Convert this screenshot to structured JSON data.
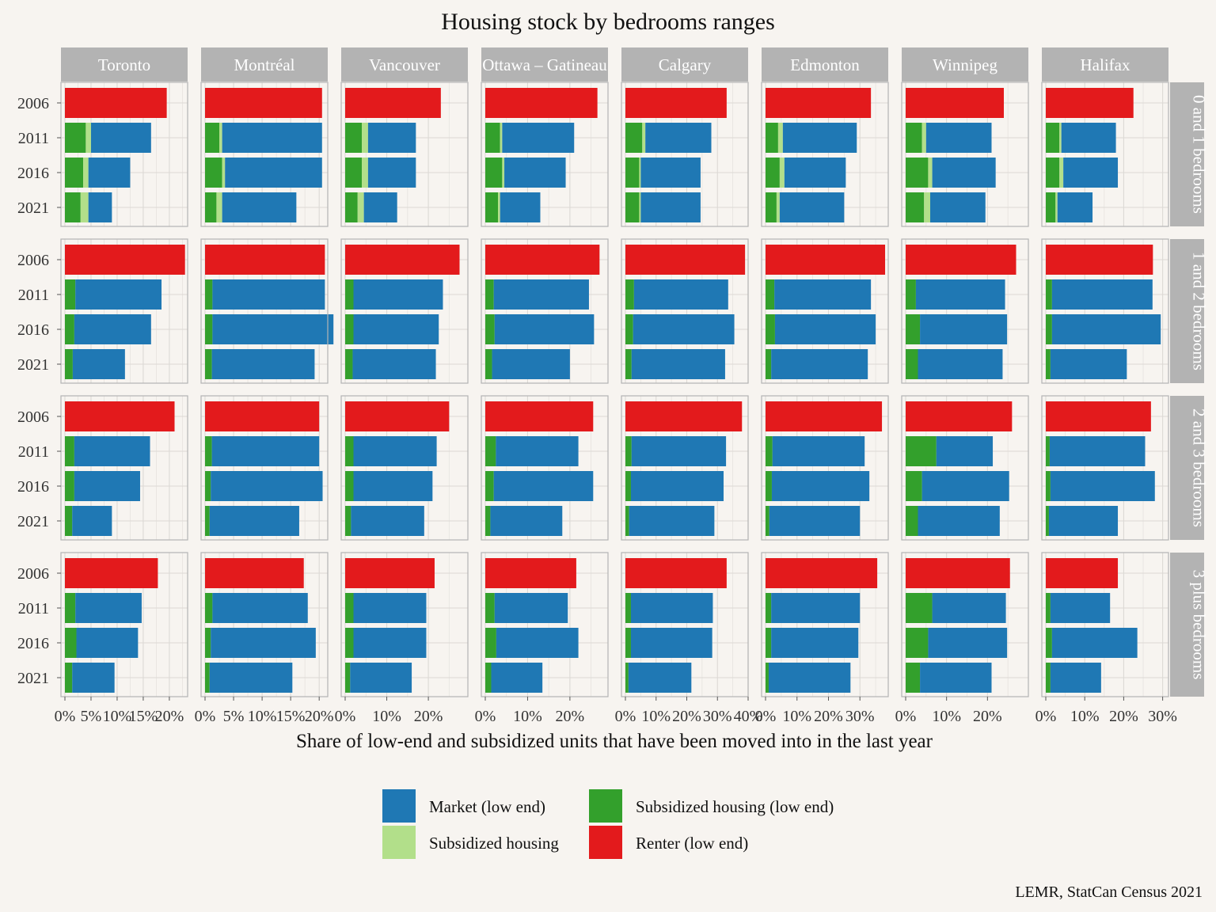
{
  "chart_data": {
    "type": "bar",
    "title": "Housing stock by bedrooms ranges",
    "xlabel": "Share of low-end and subsidized units that have been moved into in the last year",
    "caption": "LEMR, StatCan Census 2021",
    "years": [
      "2006",
      "2011",
      "2016",
      "2021"
    ],
    "cities": [
      "Toronto",
      "Montréal",
      "Vancouver",
      "Ottawa – Gatineau",
      "Calgary",
      "Edmonton",
      "Winnipeg",
      "Halifax"
    ],
    "bedroom_ranges": [
      "0 and 1 bedrooms",
      "1 and 2 bedrooms",
      "2 and 3 bedrooms",
      "3 plus bedrooms"
    ],
    "legend": [
      {
        "key": "market",
        "label": "Market (low end)",
        "color": "#1f78b4"
      },
      {
        "key": "subsidized_low",
        "label": "Subsidized housing (low end)",
        "color": "#33a02c"
      },
      {
        "key": "subsidized",
        "label": "Subsidized housing",
        "color": "#b2df8a"
      },
      {
        "key": "renter",
        "label": "Renter (low end)",
        "color": "#e31a1c"
      }
    ],
    "series_order": [
      "subsidized_low",
      "subsidized",
      "market"
    ],
    "axes": [
      {
        "city": "Toronto",
        "xlim": [
          0,
          23.5
        ],
        "ticks": [
          0,
          5,
          10,
          15,
          20
        ],
        "tick_labels": [
          "0%",
          "5%",
          "10%",
          "15%",
          "20%"
        ]
      },
      {
        "city": "Montréal",
        "xlim": [
          0,
          21.5
        ],
        "ticks": [
          0,
          5,
          10,
          15,
          20
        ],
        "tick_labels": [
          "0%",
          "5%",
          "10%",
          "15%",
          "20%"
        ]
      },
      {
        "city": "Vancouver",
        "xlim": [
          0,
          29.5
        ],
        "ticks": [
          0,
          10,
          20
        ],
        "tick_labels": [
          "0%",
          "10%",
          "20%"
        ]
      },
      {
        "city": "Ottawa – Gatineau",
        "xlim": [
          0,
          29
        ],
        "ticks": [
          0,
          10,
          20
        ],
        "tick_labels": [
          "0%",
          "10%",
          "20%"
        ]
      },
      {
        "city": "Calgary",
        "xlim": [
          0,
          40
        ],
        "ticks": [
          0,
          10,
          20,
          30,
          40
        ],
        "tick_labels": [
          "0%",
          "10%",
          "20%",
          "30%",
          "40%"
        ]
      },
      {
        "city": "Edmonton",
        "xlim": [
          0,
          39
        ],
        "ticks": [
          0,
          10,
          20,
          30
        ],
        "tick_labels": [
          "0%",
          "10%",
          "20%",
          "30%"
        ]
      },
      {
        "city": "Winnipeg",
        "xlim": [
          0,
          30
        ],
        "ticks": [
          0,
          10,
          20
        ],
        "tick_labels": [
          "0%",
          "10%",
          "20%"
        ]
      },
      {
        "city": "Halifax",
        "xlim": [
          0,
          31.5
        ],
        "ticks": [
          0,
          10,
          20,
          30
        ],
        "tick_labels": [
          "0%",
          "10%",
          "20%",
          "30%"
        ]
      }
    ],
    "panels": [
      [
        {
          "renter": 19.5,
          "rows": [
            [
              4.0,
              1.0,
              11.5
            ],
            [
              3.5,
              1.0,
              8.0
            ],
            [
              3.0,
              1.5,
              4.5
            ]
          ]
        },
        {
          "renter": 20.5,
          "rows": [
            [
              2.5,
              0.5,
              17.5
            ],
            [
              3.0,
              0.5,
              17.0
            ],
            [
              2.0,
              1.0,
              13.0
            ]
          ]
        },
        {
          "renter": 23.0,
          "rows": [
            [
              4.0,
              1.5,
              11.5
            ],
            [
              4.0,
              1.5,
              11.5
            ],
            [
              3.0,
              1.5,
              8.0
            ]
          ]
        },
        {
          "renter": 26.5,
          "rows": [
            [
              3.5,
              0.5,
              17.0
            ],
            [
              4.0,
              0.5,
              14.5
            ],
            [
              3.0,
              0.5,
              9.5
            ]
          ]
        },
        {
          "renter": 33.0,
          "rows": [
            [
              5.5,
              1.0,
              21.5
            ],
            [
              4.5,
              0.5,
              19.5
            ],
            [
              4.5,
              0.5,
              19.5
            ]
          ]
        },
        {
          "renter": 33.5,
          "rows": [
            [
              4.0,
              1.5,
              23.5
            ],
            [
              4.5,
              1.5,
              19.5
            ],
            [
              3.5,
              1.0,
              20.5
            ]
          ]
        },
        {
          "renter": 24.0,
          "rows": [
            [
              4.0,
              1.0,
              16.0
            ],
            [
              5.5,
              1.0,
              15.5
            ],
            [
              4.5,
              1.5,
              13.5
            ]
          ]
        },
        {
          "renter": 22.5,
          "rows": [
            [
              3.5,
              0.5,
              14.0
            ],
            [
              3.5,
              1.0,
              14.0
            ],
            [
              2.5,
              0.5,
              9.0
            ]
          ]
        }
      ],
      [
        {
          "renter": 23.0,
          "rows": [
            [
              2.0,
              0,
              16.5
            ],
            [
              1.8,
              0,
              14.7
            ],
            [
              1.5,
              0,
              10.0
            ]
          ]
        },
        {
          "renter": 21.0,
          "rows": [
            [
              1.3,
              0,
              19.7
            ],
            [
              1.3,
              0,
              21.2
            ],
            [
              1.2,
              0,
              18.0
            ]
          ]
        },
        {
          "renter": 27.5,
          "rows": [
            [
              2.0,
              0,
              21.5
            ],
            [
              2.0,
              0,
              20.5
            ],
            [
              1.8,
              0,
              20.0
            ]
          ]
        },
        {
          "renter": 27.0,
          "rows": [
            [
              2.0,
              0,
              22.5
            ],
            [
              2.2,
              0,
              23.5
            ],
            [
              1.6,
              0,
              18.4
            ]
          ]
        },
        {
          "renter": 39.0,
          "rows": [
            [
              2.8,
              0,
              30.7
            ],
            [
              2.5,
              0,
              33.0
            ],
            [
              2.0,
              0,
              30.5
            ]
          ]
        },
        {
          "renter": 38.0,
          "rows": [
            [
              2.8,
              0,
              30.7
            ],
            [
              3.0,
              0,
              32.0
            ],
            [
              1.8,
              0,
              30.7
            ]
          ]
        },
        {
          "renter": 27.0,
          "rows": [
            [
              2.5,
              0,
              21.8
            ],
            [
              3.5,
              0,
              21.3
            ],
            [
              3.0,
              0,
              20.7
            ]
          ]
        },
        {
          "renter": 27.5,
          "rows": [
            [
              1.6,
              0,
              25.8
            ],
            [
              1.6,
              0,
              27.9
            ],
            [
              1.2,
              0,
              19.6
            ]
          ]
        }
      ],
      [
        {
          "renter": 21.0,
          "rows": [
            [
              1.8,
              0,
              14.5
            ],
            [
              1.8,
              0,
              12.6
            ],
            [
              1.4,
              0,
              7.6
            ]
          ]
        },
        {
          "renter": 20.0,
          "rows": [
            [
              1.2,
              0,
              18.8
            ],
            [
              1.0,
              0,
              19.6
            ],
            [
              0.8,
              0,
              15.7
            ]
          ]
        },
        {
          "renter": 25.0,
          "rows": [
            [
              2.0,
              0,
              20.0
            ],
            [
              2.0,
              0,
              19.0
            ],
            [
              1.4,
              0,
              17.6
            ]
          ]
        },
        {
          "renter": 25.5,
          "rows": [
            [
              2.5,
              0,
              19.5
            ],
            [
              2.0,
              0,
              23.5
            ],
            [
              1.2,
              0,
              17.0
            ]
          ]
        },
        {
          "renter": 38.0,
          "rows": [
            [
              2.0,
              0,
              30.8
            ],
            [
              1.8,
              0,
              30.2
            ],
            [
              1.2,
              0,
              27.8
            ]
          ]
        },
        {
          "renter": 37.0,
          "rows": [
            [
              2.2,
              0,
              29.3
            ],
            [
              2.0,
              0,
              31.0
            ],
            [
              1.2,
              0,
              28.8
            ]
          ]
        },
        {
          "renter": 26.0,
          "rows": [
            [
              7.5,
              0,
              13.8
            ],
            [
              4.0,
              0,
              21.3
            ],
            [
              3.0,
              0,
              20.0
            ]
          ]
        },
        {
          "renter": 27.0,
          "rows": [
            [
              1.0,
              0,
              24.5
            ],
            [
              1.2,
              0,
              26.8
            ],
            [
              0.8,
              0,
              17.7
            ]
          ]
        }
      ],
      [
        {
          "renter": 17.8,
          "rows": [
            [
              2.0,
              0,
              12.7
            ],
            [
              2.2,
              0,
              11.8
            ],
            [
              1.4,
              0,
              8.1
            ]
          ]
        },
        {
          "renter": 17.3,
          "rows": [
            [
              1.3,
              0,
              16.7
            ],
            [
              1.0,
              0,
              18.4
            ],
            [
              0.8,
              0,
              14.5
            ]
          ]
        },
        {
          "renter": 21.5,
          "rows": [
            [
              2.0,
              0,
              17.5
            ],
            [
              2.0,
              0,
              17.5
            ],
            [
              1.2,
              0,
              14.8
            ]
          ]
        },
        {
          "renter": 21.5,
          "rows": [
            [
              2.2,
              0,
              17.3
            ],
            [
              2.6,
              0,
              19.4
            ],
            [
              1.4,
              0,
              12.1
            ]
          ]
        },
        {
          "renter": 33.0,
          "rows": [
            [
              1.8,
              0,
              26.7
            ],
            [
              1.8,
              0,
              26.5
            ],
            [
              1.0,
              0,
              20.5
            ]
          ]
        },
        {
          "renter": 35.5,
          "rows": [
            [
              1.8,
              0,
              28.2
            ],
            [
              1.8,
              0,
              27.7
            ],
            [
              1.0,
              0,
              26.0
            ]
          ]
        },
        {
          "renter": 25.5,
          "rows": [
            [
              6.5,
              0,
              18.0
            ],
            [
              5.5,
              0,
              19.3
            ],
            [
              3.5,
              0,
              17.5
            ]
          ]
        },
        {
          "renter": 18.5,
          "rows": [
            [
              1.2,
              0,
              15.3
            ],
            [
              1.6,
              0,
              21.9
            ],
            [
              1.2,
              0,
              13.0
            ]
          ]
        }
      ]
    ]
  }
}
